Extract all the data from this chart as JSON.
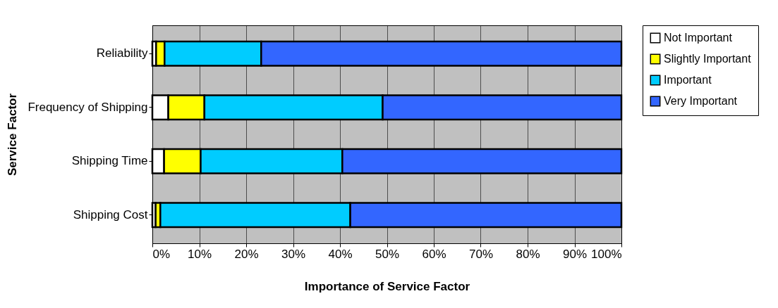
{
  "chart_data": {
    "type": "bar",
    "orientation": "horizontal",
    "stacked": true,
    "xlabel": "Importance of Service Factor",
    "ylabel": "Service Factor",
    "categories": [
      "Reliability",
      "Frequency of Shipping",
      "Shipping Time",
      "Shipping Cost"
    ],
    "series": [
      {
        "name": "Not Important",
        "color": "#ffffff",
        "values": [
          0.8,
          3.4,
          2.5,
          0.7
        ]
      },
      {
        "name": "Slightly Important",
        "color": "#ffff00",
        "values": [
          1.8,
          7.7,
          7.8,
          1.0
        ]
      },
      {
        "name": "Important",
        "color": "#00ccff",
        "values": [
          20.6,
          38.0,
          30.2,
          40.5
        ]
      },
      {
        "name": "Very Important",
        "color": "#3366ff",
        "values": [
          76.8,
          50.9,
          59.5,
          57.8
        ]
      }
    ],
    "xlim": [
      0,
      100
    ],
    "xticks": [
      {
        "value": 0,
        "label": "0%"
      },
      {
        "value": 10,
        "label": "10%"
      },
      {
        "value": 20,
        "label": "20%"
      },
      {
        "value": 30,
        "label": "30%"
      },
      {
        "value": 40,
        "label": "40%"
      },
      {
        "value": 50,
        "label": "50%"
      },
      {
        "value": 60,
        "label": "60%"
      },
      {
        "value": 70,
        "label": "70%"
      },
      {
        "value": 80,
        "label": "80%"
      },
      {
        "value": 90,
        "label": "90%"
      },
      {
        "value": 100,
        "label": "100%"
      }
    ],
    "grid": "x",
    "legend": "right"
  }
}
